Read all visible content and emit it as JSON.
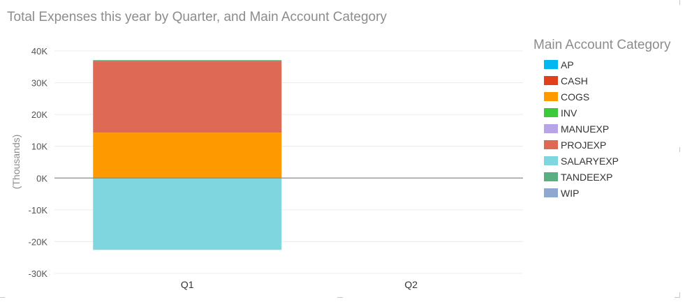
{
  "title": "Total Expenses this year by Quarter, and Main Account Category",
  "legend": {
    "title": "Main Account Category",
    "items": [
      {
        "label": "AP",
        "color": "#01B8F0"
      },
      {
        "label": "CASH",
        "color": "#E0401B"
      },
      {
        "label": "COGS",
        "color": "#FF9900"
      },
      {
        "label": "INV",
        "color": "#3CC93C"
      },
      {
        "label": "MANUEXP",
        "color": "#B8A5E8"
      },
      {
        "label": "PROJEXP",
        "color": "#DE6954"
      },
      {
        "label": "SALARYEXP",
        "color": "#7FD6DE"
      },
      {
        "label": "TANDEEXP",
        "color": "#5AAF82"
      },
      {
        "label": "WIP",
        "color": "#8FA8CF"
      }
    ]
  },
  "chart_data": {
    "type": "bar",
    "stacked": true,
    "title": "Total Expenses this year by Quarter, and Main Account Category",
    "ylabel": "(Thousands)",
    "xlabel": "",
    "categories": [
      "Q1",
      "Q2"
    ],
    "ylim": [
      -30,
      40
    ],
    "yticks": [
      40,
      30,
      20,
      10,
      0,
      -10,
      -20,
      -30
    ],
    "ytick_labels": [
      "40K",
      "30K",
      "20K",
      "10K",
      "0K",
      "-10K",
      "-20K",
      "-30K"
    ],
    "grid": true,
    "legend_position": "right",
    "series": [
      {
        "name": "SALARYEXP",
        "color": "#7FD6DE",
        "values": [
          -22.6,
          0
        ]
      },
      {
        "name": "COGS",
        "color": "#FF9900",
        "values": [
          14.3,
          0
        ]
      },
      {
        "name": "PROJEXP",
        "color": "#DE6954",
        "values": [
          22.4,
          0
        ]
      },
      {
        "name": "TANDEEXP",
        "color": "#5AAF82",
        "values": [
          0.4,
          0
        ]
      }
    ]
  }
}
